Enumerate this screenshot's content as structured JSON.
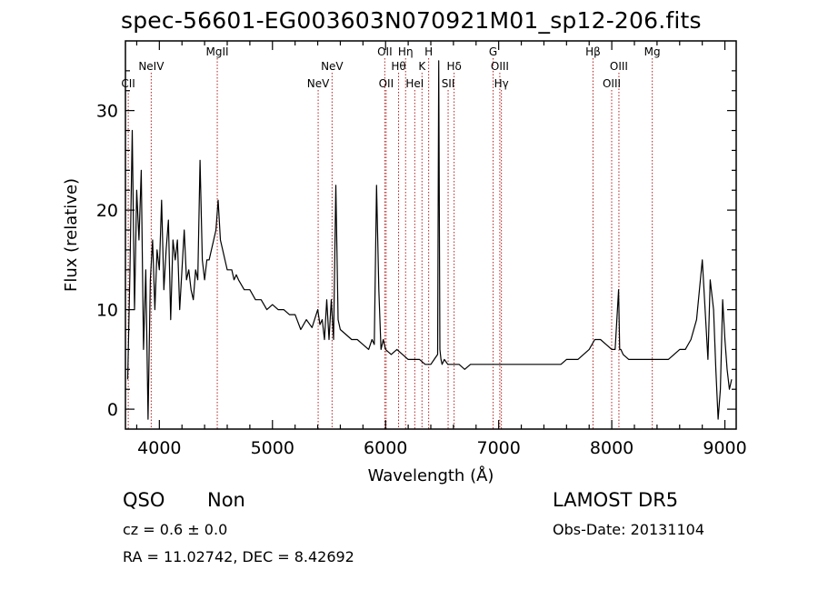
{
  "title": "spec-56601-EG003603N070921M01_sp12-206.fits",
  "chart_data": {
    "type": "line",
    "xlabel": "Wavelength (Å)",
    "ylabel": "Flux (relative)",
    "xlim": [
      3700,
      9100
    ],
    "ylim": [
      -2,
      37
    ],
    "xticks": [
      4000,
      5000,
      6000,
      7000,
      8000,
      9000
    ],
    "yticks": [
      0,
      10,
      20,
      30
    ],
    "grid": false,
    "spectral_lines": [
      {
        "name": "CII",
        "x": 3725,
        "row": 3
      },
      {
        "name": "NeIV",
        "x": 3928,
        "row": 1
      },
      {
        "name": "MgII",
        "x": 4512,
        "row": 0
      },
      {
        "name": "NeV",
        "x": 5404,
        "row": 3
      },
      {
        "name": "NeV",
        "x": 5527,
        "row": 1
      },
      {
        "name": "OII",
        "x": 5993,
        "row": 0
      },
      {
        "name": "OII",
        "x": 6005,
        "row": 3
      },
      {
        "name": "Hθ",
        "x": 6115,
        "row": 1
      },
      {
        "name": "Hη",
        "x": 6177,
        "row": 0
      },
      {
        "name": "HeI",
        "x": 6258,
        "row": 3
      },
      {
        "name": "K",
        "x": 6322,
        "row": 1
      },
      {
        "name": "H",
        "x": 6381,
        "row": 0
      },
      {
        "name": "SII",
        "x": 6553,
        "row": 3
      },
      {
        "name": "Hδ",
        "x": 6606,
        "row": 1
      },
      {
        "name": "G",
        "x": 6951,
        "row": 0
      },
      {
        "name": "OIII",
        "x": 7010,
        "row": 1
      },
      {
        "name": "Hγ",
        "x": 7024,
        "row": 3
      },
      {
        "name": "Hβ",
        "x": 7834,
        "row": 0
      },
      {
        "name": "OIII",
        "x": 7999,
        "row": 3
      },
      {
        "name": "OIII",
        "x": 8063,
        "row": 1
      },
      {
        "name": "Mg",
        "x": 8358,
        "row": 0
      }
    ],
    "series": [
      {
        "x": [
          3720,
          3740,
          3760,
          3780,
          3800,
          3820,
          3840,
          3860,
          3880,
          3900,
          3920,
          3940,
          3960,
          3980,
          4000,
          4020,
          4040,
          4060,
          4080,
          4100,
          4120,
          4140,
          4160,
          4180,
          4200,
          4220,
          4240,
          4260,
          4280,
          4300,
          4320,
          4340,
          4360,
          4380,
          4400,
          4420,
          4440,
          4460,
          4480,
          4500,
          4520,
          4540,
          4560,
          4580,
          4600,
          4620,
          4640,
          4660,
          4680,
          4700,
          4750,
          4800,
          4850,
          4900,
          4950,
          5000,
          5050,
          5100,
          5150,
          5200,
          5250,
          5300,
          5350,
          5400,
          5420,
          5440,
          5460,
          5480,
          5500,
          5520,
          5540,
          5560,
          5580,
          5600,
          5650,
          5700,
          5750,
          5800,
          5850,
          5880,
          5900,
          5920,
          5940,
          5960,
          5980,
          6000,
          6050,
          6100,
          6150,
          6200,
          6250,
          6300,
          6350,
          6400,
          6430,
          6460,
          6470,
          6480,
          6490,
          6500,
          6520,
          6550,
          6600,
          6650,
          6700,
          6750,
          6800,
          6850,
          6900,
          6950,
          7000,
          7050,
          7100,
          7150,
          7200,
          7250,
          7300,
          7350,
          7400,
          7450,
          7500,
          7550,
          7600,
          7650,
          7700,
          7750,
          7800,
          7850,
          7900,
          7950,
          8000,
          8030,
          8060,
          8070,
          8080,
          8100,
          8150,
          8200,
          8250,
          8300,
          8350,
          8400,
          8450,
          8500,
          8550,
          8600,
          8650,
          8700,
          8750,
          8800,
          8850,
          8870,
          8900,
          8920,
          8940,
          8960,
          8980,
          9000,
          9020,
          9040,
          9060
        ],
        "y": [
          3,
          14,
          28,
          10,
          22,
          17,
          24,
          6,
          14,
          -1,
          13,
          17,
          10,
          16,
          14,
          21,
          12,
          16,
          19,
          9,
          17,
          15,
          17,
          10,
          14,
          18,
          13,
          14,
          12,
          11,
          14,
          13,
          25,
          15,
          13,
          15,
          15,
          16,
          17,
          18,
          21,
          17,
          16,
          15,
          14,
          14,
          14,
          13,
          13.5,
          13,
          12,
          12,
          11,
          11,
          10,
          10.5,
          10,
          10,
          9.5,
          9.5,
          8,
          9,
          8.2,
          10,
          8.5,
          9,
          7,
          11,
          7,
          11,
          7,
          22.5,
          9,
          8,
          7.5,
          7,
          7,
          6.5,
          6,
          7,
          6.5,
          22.5,
          12,
          6,
          7,
          6,
          5.5,
          6,
          5.5,
          5,
          5,
          5,
          4.5,
          4.5,
          5,
          5.5,
          35,
          6,
          5,
          4.5,
          5,
          4.5,
          4.5,
          4.5,
          4,
          4.5,
          4.5,
          4.5,
          4.5,
          4.5,
          4.5,
          4.5,
          4.5,
          4.5,
          4.5,
          4.5,
          4.5,
          4.5,
          4.5,
          4.5,
          4.5,
          4.5,
          5,
          5,
          5,
          5.5,
          6,
          7,
          7,
          6.5,
          6,
          6,
          12,
          6,
          6,
          5.5,
          5,
          5,
          5,
          5,
          5,
          5,
          5,
          5,
          5.5,
          6,
          6,
          7,
          9,
          15,
          5,
          13,
          10,
          4,
          -1,
          2,
          11,
          7,
          4,
          2,
          3
        ]
      }
    ]
  },
  "footer": {
    "object_class": "QSO",
    "subclass": "Non",
    "redshift": "cz = 0.6 ± 0.0",
    "coordinates": "RA =  11.02742, DEC =   8.42692",
    "survey": "LAMOST DR5",
    "obs_date": "Obs-Date: 20131104"
  }
}
